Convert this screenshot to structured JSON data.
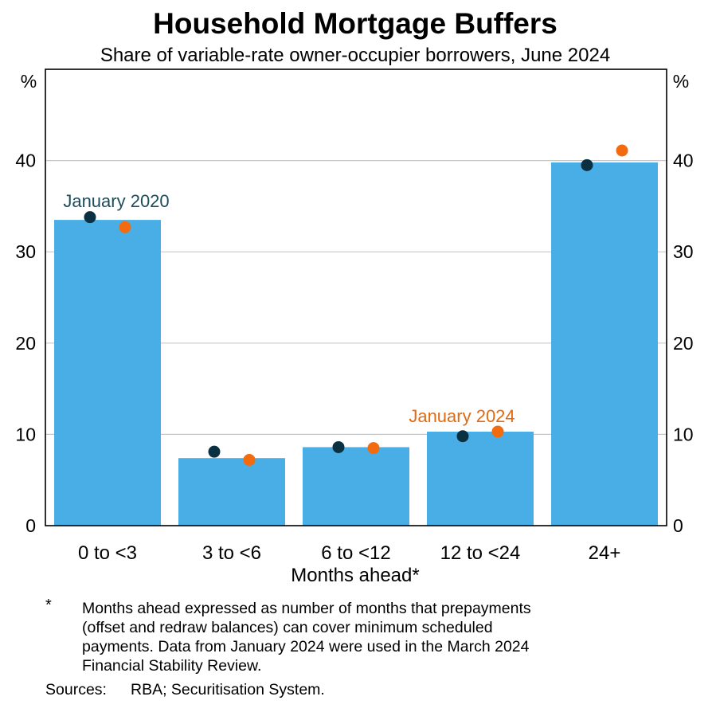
{
  "colors": {
    "bar": "#4aaee6",
    "jan2020": "#0a3142",
    "jan2024": "#f26b0f",
    "jan2020_label": "#1c4d5c",
    "jan2024_label": "#e06a12",
    "grid": "#c8c8c8"
  },
  "chart_data": {
    "type": "bar",
    "title": "Household Mortgage Buffers",
    "subtitle": "Share of variable-rate owner-occupier borrowers, June 2024",
    "xlabel": "Months ahead*",
    "ylabel_left": "%",
    "ylabel_right": "%",
    "ylim": [
      0,
      50
    ],
    "yticks": [
      0,
      10,
      20,
      30,
      40
    ],
    "grid": true,
    "categories": [
      "0 to <3",
      "3 to <6",
      "6 to <12",
      "12 to <24",
      "24+"
    ],
    "values": [
      33.5,
      7.4,
      8.6,
      10.3,
      39.8
    ],
    "series": [
      {
        "name": "January 2020",
        "values": [
          33.8,
          8.1,
          8.6,
          9.8,
          39.5
        ]
      },
      {
        "name": "January 2024",
        "values": [
          32.7,
          7.2,
          8.5,
          10.3,
          41.1
        ]
      }
    ]
  },
  "footnote": {
    "marker": "*",
    "text": "Months ahead expressed as number of months that prepayments (offset and redraw balances) can cover minimum scheduled payments. Data from January 2024 were used in the March 2024 Financial Stability Review.",
    "lines": [
      "Months ahead expressed as number of months that prepayments",
      "(offset and redraw balances) can cover minimum scheduled",
      "payments. Data from January 2024 were used in the March 2024",
      "Financial Stability Review."
    ]
  },
  "sources": {
    "label": "Sources:",
    "text": "RBA; Securitisation System."
  }
}
